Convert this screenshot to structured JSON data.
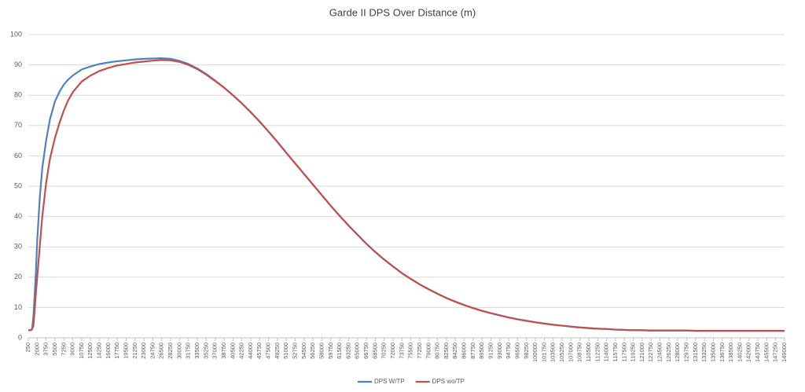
{
  "chart_data": {
    "type": "line",
    "title": "Garde II DPS Over Distance (m)",
    "x": [
      250,
      750,
      1000,
      1250,
      1500,
      1750,
      2000,
      2500,
      3000,
      3750,
      4500,
      5500,
      6500,
      7250,
      8000,
      9000,
      10750,
      12500,
      14250,
      16000,
      17750,
      19500,
      21250,
      23000,
      24750,
      26500,
      28250,
      30000,
      31750,
      33500,
      35250,
      37000,
      38750,
      40500,
      42250,
      44000,
      45750,
      47500,
      49250,
      51000,
      52750,
      54500,
      56250,
      58000,
      59750,
      61500,
      63250,
      65000,
      66750,
      68500,
      70250,
      72000,
      73750,
      75500,
      77250,
      79000,
      80750,
      82500,
      84250,
      86000,
      87750,
      89500,
      91250,
      93000,
      94750,
      96500,
      98250,
      100000,
      101750,
      103500,
      105250,
      107000,
      108750,
      110500,
      112250,
      114000,
      115750,
      117500,
      119250,
      121000,
      122750,
      124500,
      126250,
      128000,
      129750,
      131500,
      133250,
      135000,
      136750,
      138500,
      140250,
      142000,
      143750,
      145500,
      147250,
      149000
    ],
    "series": [
      {
        "name": "DPS W/TP",
        "color": "#4f81bd",
        "values": [
          2.5,
          2.5,
          3,
          7,
          14,
          22,
          32,
          46,
          56,
          65,
          72,
          78,
          81.5,
          83.5,
          85,
          86.5,
          88.5,
          89.5,
          90.3,
          90.8,
          91.2,
          91.5,
          91.8,
          92,
          92.1,
          92.2,
          92,
          91.3,
          90.3,
          88.8,
          87,
          84.8,
          82.5,
          80,
          77.3,
          74.4,
          71.3,
          68,
          64.6,
          61,
          57.5,
          54,
          50.5,
          47,
          43.5,
          40.2,
          37,
          34,
          31,
          28.3,
          25.8,
          23.5,
          21.3,
          19.4,
          17.6,
          16,
          14.5,
          13.1,
          11.9,
          10.8,
          9.8,
          8.9,
          8.1,
          7.4,
          6.7,
          6.1,
          5.6,
          5.1,
          4.7,
          4.3,
          4,
          3.7,
          3.4,
          3.2,
          3,
          2.9,
          2.7,
          2.6,
          2.5,
          2.5,
          2.4,
          2.4,
          2.4,
          2.4,
          2.4,
          2.3,
          2.3,
          2.3,
          2.3,
          2.3,
          2.3,
          2.3,
          2.3,
          2.3,
          2.3,
          2.3
        ]
      },
      {
        "name": "DPS wo/TP",
        "color": "#c0504d",
        "values": [
          2.5,
          2.5,
          2.8,
          4,
          9,
          15,
          20,
          30,
          40,
          51,
          59,
          66,
          71.5,
          75,
          78,
          81,
          84.5,
          86.5,
          88,
          89,
          89.8,
          90.3,
          90.8,
          91.1,
          91.4,
          91.6,
          91.5,
          91,
          90,
          88.6,
          86.8,
          84.7,
          82.5,
          80,
          77.3,
          74.4,
          71.3,
          68,
          64.6,
          61,
          57.5,
          54,
          50.5,
          47,
          43.5,
          40.2,
          37,
          34,
          31,
          28.3,
          25.8,
          23.5,
          21.3,
          19.4,
          17.6,
          16,
          14.5,
          13.1,
          11.9,
          10.8,
          9.8,
          8.9,
          8.1,
          7.4,
          6.7,
          6.1,
          5.6,
          5.1,
          4.7,
          4.3,
          4,
          3.7,
          3.4,
          3.2,
          3,
          2.9,
          2.7,
          2.6,
          2.5,
          2.5,
          2.4,
          2.4,
          2.4,
          2.4,
          2.4,
          2.3,
          2.3,
          2.3,
          2.3,
          2.3,
          2.3,
          2.3,
          2.3,
          2.3,
          2.3,
          2.3
        ]
      }
    ],
    "xlim": [
      250,
      149000
    ],
    "xticks": [
      250,
      2000,
      3750,
      5500,
      7250,
      9000,
      10750,
      12500,
      14250,
      16000,
      17750,
      19500,
      21250,
      23000,
      24750,
      26500,
      28250,
      30000,
      31750,
      33500,
      35250,
      37000,
      38750,
      40500,
      42250,
      44000,
      45750,
      47500,
      49250,
      51000,
      52750,
      54500,
      56250,
      58000,
      59750,
      61500,
      63250,
      65000,
      66750,
      68500,
      70250,
      72000,
      73750,
      75500,
      77250,
      79000,
      80750,
      82500,
      84250,
      86000,
      87750,
      89500,
      91250,
      93000,
      94750,
      96500,
      98250,
      100000,
      101750,
      103500,
      105250,
      107000,
      108750,
      110500,
      112250,
      114000,
      115750,
      117500,
      119250,
      121000,
      122750,
      124500,
      126250,
      128000,
      129750,
      131500,
      133250,
      135000,
      136750,
      138500,
      140250,
      142000,
      143750,
      145500,
      147250,
      149000
    ],
    "ylim": [
      0,
      100
    ],
    "yticks": [
      0,
      10,
      20,
      30,
      40,
      50,
      60,
      70,
      80,
      90,
      100
    ],
    "grid": true,
    "legend": "bottom"
  }
}
